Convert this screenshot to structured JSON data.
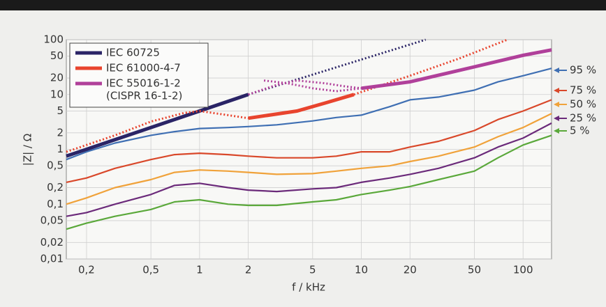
{
  "chart_data": {
    "type": "line",
    "xlabel": "f / kHz",
    "ylabel": "|Z| / Ω",
    "xscale": "log",
    "yscale": "log",
    "xlim": [
      0.15,
      150
    ],
    "ylim": [
      0.01,
      100
    ],
    "xticks": [
      {
        "value": 0.2,
        "label": "0,2"
      },
      {
        "value": 0.5,
        "label": "0,5"
      },
      1,
      2,
      5,
      10,
      20,
      50,
      100
    ],
    "yticks": [
      {
        "value": 0.01,
        "label": "0,01"
      },
      {
        "value": 0.02,
        "label": "0,02"
      },
      {
        "value": 0.05,
        "label": "0,05"
      },
      {
        "value": 0.1,
        "label": "0,1"
      },
      {
        "value": 0.2,
        "label": "0,2"
      },
      {
        "value": 0.5,
        "label": "0,5"
      },
      1,
      2,
      5,
      10,
      20,
      50,
      100
    ],
    "grid": true,
    "legend": "upper left",
    "standards": [
      {
        "name": "IEC 60725",
        "color": "#2a2466",
        "segments": [
          {
            "style": "solid",
            "x": [
              0.15,
              2
            ],
            "values": [
              0.75,
              10
            ]
          },
          {
            "style": "dotted",
            "x": [
              2,
              25
            ],
            "values": [
              10,
              100
            ]
          }
        ]
      },
      {
        "name": "IEC 61000-4-7",
        "color": "#e8442e",
        "segments": [
          {
            "style": "dotted",
            "x": [
              0.15,
              0.3,
              0.5,
              0.8,
              1,
              1.5,
              2
            ],
            "values": [
              0.9,
              1.8,
              3.2,
              4.6,
              5,
              4.2,
              3.7
            ]
          },
          {
            "style": "solid",
            "x": [
              2,
              4,
              6,
              9
            ],
            "values": [
              3.7,
              5,
              7,
              10
            ]
          },
          {
            "style": "dotted",
            "x": [
              9,
              20,
              40,
              80
            ],
            "values": [
              10,
              22,
              45,
              100
            ]
          }
        ]
      },
      {
        "name": "IEC 55016-1-2",
        "note": "(CISPR 16-1-2)",
        "color": "#b0409a",
        "segments": [
          {
            "style": "dotted",
            "x": [
              2,
              3,
              4,
              6,
              8,
              10
            ],
            "values": [
              10,
              15,
              18,
              16,
              14,
              13
            ]
          },
          {
            "style": "dotted",
            "x": [
              2.5,
              3.5,
              5,
              7,
              10
            ],
            "values": [
              18,
              16,
              13,
              11.5,
              13
            ]
          },
          {
            "style": "solid",
            "x": [
              10,
              20,
              50,
              100,
              150
            ],
            "values": [
              13,
              17,
              32,
              52,
              65
            ]
          }
        ]
      }
    ],
    "x": [
      0.15,
      0.2,
      0.3,
      0.5,
      0.7,
      1,
      1.5,
      2,
      3,
      5,
      7,
      10,
      15,
      20,
      30,
      50,
      70,
      100,
      150
    ],
    "series": [
      {
        "name": "95 %",
        "color": "#3f6fb3",
        "values": [
          0.65,
          0.9,
          1.3,
          1.8,
          2.1,
          2.4,
          2.5,
          2.6,
          2.8,
          3.3,
          3.8,
          4.2,
          6,
          8,
          9,
          12,
          17,
          22,
          30
        ]
      },
      {
        "name": "75 %",
        "color": "#d9482a",
        "values": [
          0.25,
          0.3,
          0.45,
          0.65,
          0.8,
          0.85,
          0.8,
          0.75,
          0.7,
          0.7,
          0.75,
          0.9,
          0.9,
          1.1,
          1.4,
          2.2,
          3.5,
          5,
          8
        ]
      },
      {
        "name": "50 %",
        "color": "#f0a23a",
        "values": [
          0.1,
          0.13,
          0.2,
          0.28,
          0.38,
          0.42,
          0.4,
          0.38,
          0.35,
          0.36,
          0.4,
          0.45,
          0.5,
          0.6,
          0.75,
          1.1,
          1.7,
          2.5,
          4.5
        ]
      },
      {
        "name": "25 %",
        "color": "#6b2a7a",
        "values": [
          0.06,
          0.07,
          0.1,
          0.15,
          0.22,
          0.24,
          0.2,
          0.18,
          0.17,
          0.19,
          0.2,
          0.25,
          0.3,
          0.35,
          0.45,
          0.7,
          1.1,
          1.6,
          3
        ]
      },
      {
        "name": "5 %",
        "color": "#5aa83a",
        "values": [
          0.035,
          0.045,
          0.06,
          0.08,
          0.11,
          0.12,
          0.1,
          0.095,
          0.095,
          0.11,
          0.12,
          0.15,
          0.18,
          0.21,
          0.28,
          0.4,
          0.7,
          1.2,
          1.8
        ]
      }
    ]
  }
}
